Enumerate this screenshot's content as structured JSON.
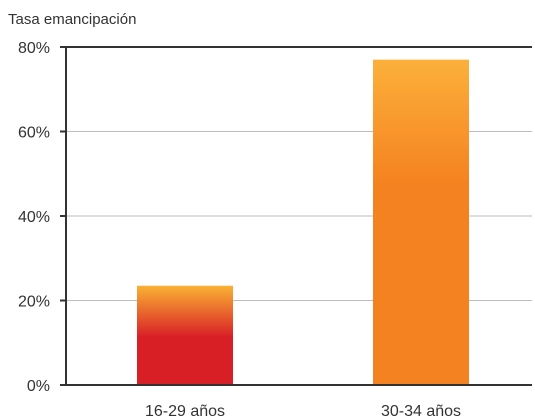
{
  "chart_data": {
    "type": "bar",
    "ylabel": "Tasa emancipación",
    "categories": [
      "16-29 años",
      "30-34 años"
    ],
    "values": [
      23.5,
      77
    ],
    "ylim": [
      0,
      80
    ],
    "yticks": [
      0,
      20,
      40,
      60,
      80
    ],
    "ytick_labels": [
      "0%",
      "20%",
      "40%",
      "60%",
      "80%"
    ],
    "grid": true,
    "legend": "none",
    "colors": {
      "bar_1_bottom": "#d81f26",
      "bar_1_top": "#f9b233",
      "bar_2_bottom": "#f58220",
      "bar_2_top": "#fbb03b",
      "axis": "#333333",
      "grid": "#bdbdbd",
      "text": "#333333"
    }
  }
}
